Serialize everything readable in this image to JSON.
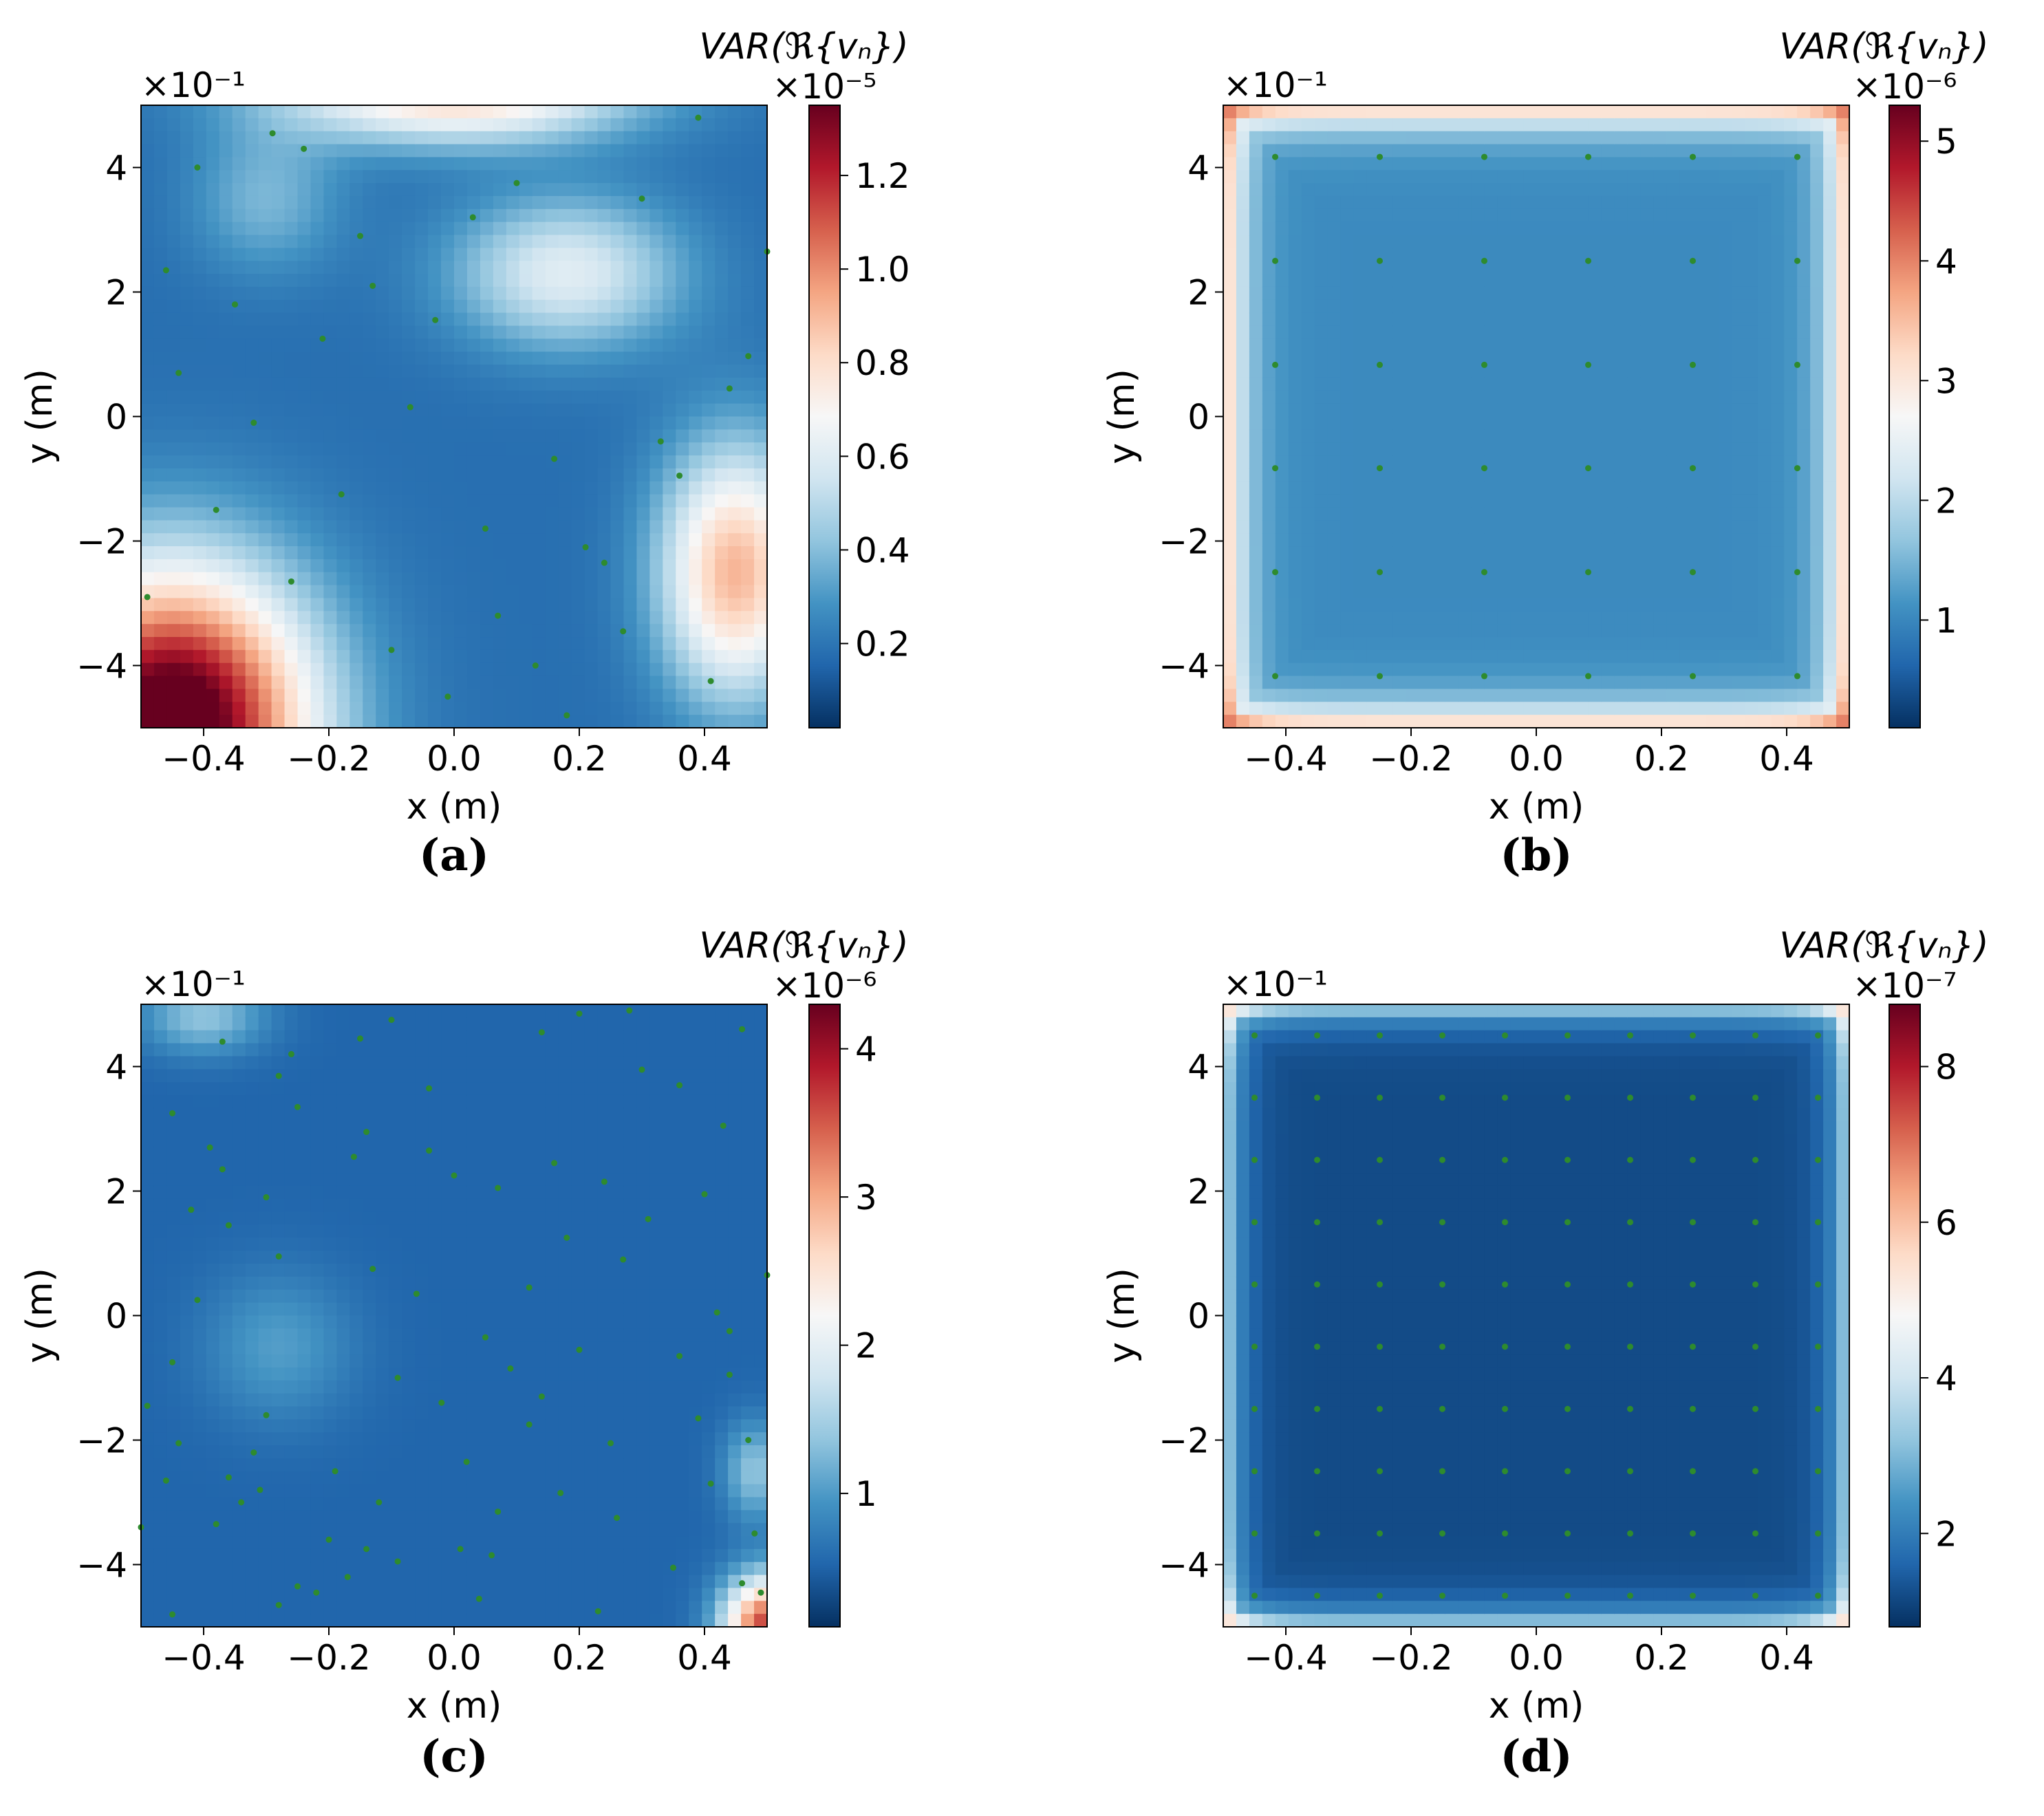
{
  "chart_data": [
    {
      "type": "heatmap",
      "panel": "(a)",
      "title": "",
      "xlabel": "x (m)",
      "ylabel": "y (m)",
      "xlim": [
        -0.5,
        0.5
      ],
      "ylim": [
        -5,
        5
      ],
      "xticks": [
        "−0.4",
        "−0.2",
        "0.0",
        "0.2",
        "0.4"
      ],
      "xtick_values": [
        -0.4,
        -0.2,
        0.0,
        0.2,
        0.4
      ],
      "yticks": [
        "−4",
        "−2",
        "0",
        "2",
        "4"
      ],
      "ytick_values": [
        -4,
        -2,
        0,
        2,
        4
      ],
      "y_multiplier": "×10⁻¹",
      "colorbar": {
        "label": "VAR(ℜ{vₙ})",
        "multiplier": "×10⁻⁵",
        "vmin": 0.02,
        "vmax": 1.35,
        "ticks": [
          "0.2",
          "0.4",
          "0.6",
          "0.8",
          "1.0",
          "1.2"
        ],
        "tick_values": [
          0.2,
          0.4,
          0.6,
          0.8,
          1.0,
          1.2
        ]
      },
      "colormap": "RdBu_r",
      "sensor_color": "#2e8b2e",
      "sensors": [
        [
          -0.29,
          4.55
        ],
        [
          -0.24,
          4.3
        ],
        [
          -0.41,
          4.0
        ],
        [
          0.39,
          4.8
        ],
        [
          0.1,
          3.75
        ],
        [
          0.03,
          3.2
        ],
        [
          0.3,
          3.5
        ],
        [
          -0.15,
          2.9
        ],
        [
          0.5,
          2.65
        ],
        [
          -0.46,
          2.35
        ],
        [
          -0.13,
          2.1
        ],
        [
          -0.35,
          1.8
        ],
        [
          -0.03,
          1.55
        ],
        [
          -0.21,
          1.25
        ],
        [
          0.47,
          0.97
        ],
        [
          -0.44,
          0.7
        ],
        [
          0.44,
          0.45
        ],
        [
          -0.07,
          0.15
        ],
        [
          -0.32,
          -0.1
        ],
        [
          0.33,
          -0.4
        ],
        [
          0.16,
          -0.68
        ],
        [
          0.36,
          -0.95
        ],
        [
          -0.18,
          -1.25
        ],
        [
          -0.38,
          -1.5
        ],
        [
          0.05,
          -1.8
        ],
        [
          0.21,
          -2.1
        ],
        [
          0.24,
          -2.35
        ],
        [
          -0.26,
          -2.65
        ],
        [
          -0.49,
          -2.9
        ],
        [
          0.07,
          -3.2
        ],
        [
          0.27,
          -3.45
        ],
        [
          -0.1,
          -3.75
        ],
        [
          0.13,
          -4.0
        ],
        [
          0.41,
          -4.25
        ],
        [
          -0.01,
          -4.5
        ],
        [
          0.18,
          -4.8
        ]
      ]
    },
    {
      "type": "heatmap",
      "panel": "(b)",
      "title": "",
      "xlabel": "x (m)",
      "ylabel": "y (m)",
      "xlim": [
        -0.5,
        0.5
      ],
      "ylim": [
        -5,
        5
      ],
      "xticks": [
        "−0.4",
        "−0.2",
        "0.0",
        "0.2",
        "0.4"
      ],
      "xtick_values": [
        -0.4,
        -0.2,
        0.0,
        0.2,
        0.4
      ],
      "yticks": [
        "−4",
        "−2",
        "0",
        "2",
        "4"
      ],
      "ytick_values": [
        -4,
        -2,
        0,
        2,
        4
      ],
      "y_multiplier": "×10⁻¹",
      "colorbar": {
        "label": "VAR(ℜ{vₙ})",
        "multiplier": "×10⁻⁶",
        "vmin": 0.1,
        "vmax": 5.3,
        "ticks": [
          "1",
          "2",
          "3",
          "4",
          "5"
        ],
        "tick_values": [
          1,
          2,
          3,
          4,
          5
        ]
      },
      "colormap": "RdBu_r",
      "sensor_color": "#2e8b2e",
      "sensor_grid": {
        "x": [
          -0.417,
          -0.25,
          -0.083,
          0.083,
          0.25,
          0.417
        ],
        "y": [
          -4.17,
          -2.5,
          -0.83,
          0.83,
          2.5,
          4.17
        ]
      }
    },
    {
      "type": "heatmap",
      "panel": "(c)",
      "title": "",
      "xlabel": "x (m)",
      "ylabel": "y (m)",
      "xlim": [
        -0.5,
        0.5
      ],
      "ylim": [
        -5,
        5
      ],
      "xticks": [
        "−0.4",
        "−0.2",
        "0.0",
        "0.2",
        "0.4"
      ],
      "xtick_values": [
        -0.4,
        -0.2,
        0.0,
        0.2,
        0.4
      ],
      "yticks": [
        "−4",
        "−2",
        "0",
        "2",
        "4"
      ],
      "ytick_values": [
        -4,
        -2,
        0,
        2,
        4
      ],
      "y_multiplier": "×10⁻¹",
      "colorbar": {
        "label": "VAR(ℜ{vₙ})",
        "multiplier": "×10⁻⁶",
        "vmin": 0.1,
        "vmax": 4.3,
        "ticks": [
          "1",
          "2",
          "3",
          "4"
        ],
        "tick_values": [
          1,
          2,
          3,
          4
        ]
      },
      "colormap": "RdBu_r",
      "sensor_color": "#2e8b2e",
      "sensors": [
        [
          -0.37,
          4.4
        ],
        [
          -0.26,
          4.2
        ],
        [
          -0.15,
          4.45
        ],
        [
          -0.1,
          4.75
        ],
        [
          0.14,
          4.55
        ],
        [
          0.46,
          4.6
        ],
        [
          0.2,
          4.85
        ],
        [
          0.28,
          4.9
        ],
        [
          -0.28,
          3.85
        ],
        [
          0.3,
          3.95
        ],
        [
          0.36,
          3.7
        ],
        [
          -0.45,
          3.25
        ],
        [
          -0.25,
          3.35
        ],
        [
          -0.04,
          3.65
        ],
        [
          0.43,
          3.05
        ],
        [
          -0.39,
          2.7
        ],
        [
          -0.14,
          2.95
        ],
        [
          -0.04,
          2.65
        ],
        [
          0.16,
          2.45
        ],
        [
          -0.37,
          2.35
        ],
        [
          -0.16,
          2.55
        ],
        [
          0.0,
          2.25
        ],
        [
          0.07,
          2.05
        ],
        [
          0.24,
          2.15
        ],
        [
          0.4,
          1.95
        ],
        [
          -0.42,
          1.7
        ],
        [
          -0.3,
          1.9
        ],
        [
          -0.36,
          1.45
        ],
        [
          0.18,
          1.25
        ],
        [
          0.31,
          1.55
        ],
        [
          -0.28,
          0.95
        ],
        [
          -0.13,
          0.75
        ],
        [
          0.12,
          0.45
        ],
        [
          0.27,
          0.9
        ],
        [
          0.5,
          0.65
        ],
        [
          -0.41,
          0.25
        ],
        [
          -0.06,
          0.35
        ],
        [
          0.42,
          0.05
        ],
        [
          0.05,
          -0.35
        ],
        [
          0.44,
          -0.25
        ],
        [
          -0.45,
          -0.75
        ],
        [
          -0.09,
          -1.0
        ],
        [
          0.09,
          -0.85
        ],
        [
          0.2,
          -0.55
        ],
        [
          0.36,
          -0.65
        ],
        [
          -0.3,
          -1.6
        ],
        [
          -0.02,
          -1.4
        ],
        [
          0.14,
          -1.3
        ],
        [
          0.44,
          -0.95
        ],
        [
          -0.49,
          -1.45
        ],
        [
          -0.44,
          -2.05
        ],
        [
          -0.32,
          -2.2
        ],
        [
          0.12,
          -1.75
        ],
        [
          0.39,
          -1.65
        ],
        [
          -0.19,
          -2.5
        ],
        [
          0.02,
          -2.35
        ],
        [
          0.25,
          -2.05
        ],
        [
          0.47,
          -2.0
        ],
        [
          -0.36,
          -2.6
        ],
        [
          -0.46,
          -2.65
        ],
        [
          -0.31,
          -2.8
        ],
        [
          -0.12,
          -3.0
        ],
        [
          0.17,
          -2.85
        ],
        [
          0.41,
          -2.7
        ],
        [
          -0.34,
          -3.0
        ],
        [
          -0.38,
          -3.35
        ],
        [
          -0.2,
          -3.6
        ],
        [
          0.07,
          -3.15
        ],
        [
          0.26,
          -3.25
        ],
        [
          0.48,
          -3.5
        ],
        [
          -0.14,
          -3.75
        ],
        [
          0.01,
          -3.75
        ],
        [
          0.06,
          -3.85
        ],
        [
          0.35,
          -4.05
        ],
        [
          -0.09,
          -3.95
        ],
        [
          -0.25,
          -4.35
        ],
        [
          -0.17,
          -4.2
        ],
        [
          -0.22,
          -4.45
        ],
        [
          0.04,
          -4.55
        ],
        [
          0.23,
          -4.75
        ],
        [
          -0.28,
          -4.65
        ],
        [
          -0.45,
          -4.8
        ],
        [
          0.49,
          -4.45
        ],
        [
          -0.5,
          -3.4
        ],
        [
          0.46,
          -4.3
        ]
      ]
    },
    {
      "type": "heatmap",
      "panel": "(d)",
      "title": "",
      "xlabel": "x (m)",
      "ylabel": "y (m)",
      "xlim": [
        -0.5,
        0.5
      ],
      "ylim": [
        -5,
        5
      ],
      "xticks": [
        "−0.4",
        "−0.2",
        "0.0",
        "0.2",
        "0.4"
      ],
      "xtick_values": [
        -0.4,
        -0.2,
        0.0,
        0.2,
        0.4
      ],
      "yticks": [
        "−4",
        "−2",
        "0",
        "2",
        "4"
      ],
      "ytick_values": [
        -4,
        -2,
        0,
        2,
        4
      ],
      "y_multiplier": "×10⁻¹",
      "colorbar": {
        "label": "VAR(ℜ{vₙ})",
        "multiplier": "×10⁻⁷",
        "vmin": 0.8,
        "vmax": 8.8,
        "ticks": [
          "2",
          "4",
          "6",
          "8"
        ],
        "tick_values": [
          2,
          4,
          6,
          8
        ]
      },
      "colormap": "RdBu_r",
      "sensor_color": "#2e8b2e",
      "sensor_grid": {
        "x": [
          -0.45,
          -0.35,
          -0.25,
          -0.15,
          -0.05,
          0.05,
          0.15,
          0.25,
          0.35,
          0.45
        ],
        "y": [
          -4.5,
          -3.5,
          -2.5,
          -1.5,
          -0.5,
          0.5,
          1.5,
          2.5,
          3.5,
          4.5
        ]
      }
    }
  ]
}
